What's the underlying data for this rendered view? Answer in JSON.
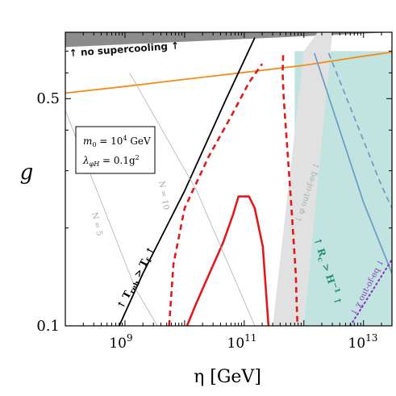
{
  "chart_data": {
    "type": "line",
    "xlabel": "η [GeV]",
    "ylabel": "g",
    "xscale": "log",
    "yscale": "log",
    "xlim": [
      100000000.0,
      30000000000000.0
    ],
    "ylim": [
      0.1,
      0.8
    ],
    "grid": false,
    "x_tick_labels": [
      {
        "value": 1000000000.0,
        "base": "10",
        "exp": "9"
      },
      {
        "value": 100000000000.0,
        "base": "10",
        "exp": "11"
      },
      {
        "value": 10000000000000.0,
        "base": "10",
        "exp": "13"
      }
    ],
    "y_tick_labels": [
      {
        "value": 0.5,
        "label": "0.5"
      },
      {
        "value": 0.1,
        "label": "0.1"
      }
    ],
    "param_box": {
      "line1": "m0 = 10^4 GeV",
      "line1_parts": [
        "m",
        "0",
        " = 10",
        "4",
        " GeV"
      ],
      "line2_parts": [
        "λ",
        "φH",
        " = 0.1g",
        "2"
      ]
    },
    "annotations": {
      "no_supercooling": "↑ no supercooling ↑",
      "treh_tf": {
        "pre": "↑ T",
        "sub1": "reh",
        "mid": " > T",
        "sub2": "f",
        "post": " ↑"
      },
      "rc_h": {
        "pre": "↑ R",
        "sub": "c",
        "mid": " > H",
        "sup": "−1",
        "post": " ↑"
      },
      "phi_out_of_eq": "↓ φ out-of-eq ↓",
      "chi_out_of_eq": "↓ χ out-of-eq ↓",
      "n10": "N = 10",
      "n5": "N = 5"
    },
    "series": [
      {
        "id": "orange",
        "color": "#f28c1c",
        "x": [
          100000000.0,
          1000000000.0,
          10000000000.0,
          100000000000.0,
          1000000000000.0,
          10000000000000.0,
          30000000000000.0
        ],
        "y": [
          0.52,
          0.545,
          0.573,
          0.602,
          0.633,
          0.675,
          0.695
        ]
      },
      {
        "id": "black",
        "color": "#000000",
        "x": [
          800000000.0,
          2000000000.0,
          10000000000.0,
          50000000000.0,
          150000000000.0
        ],
        "y": [
          0.1,
          0.145,
          0.26,
          0.5,
          0.77
        ]
      },
      {
        "id": "red-dashed-left",
        "color": "#e01a1a",
        "dash": true,
        "x": [
          5500000000.0,
          6500000000.0,
          10000000000.0,
          25000000000.0,
          60000000000.0,
          120000000000.0,
          200000000000.0
        ],
        "y": [
          0.1,
          0.155,
          0.23,
          0.33,
          0.44,
          0.56,
          0.64
        ]
      },
      {
        "id": "red-dashed-right",
        "color": "#e01a1a",
        "dash": true,
        "x": [
          450000000000.0,
          440000000000.0,
          460000000000.0,
          540000000000.0,
          620000000000.0,
          730000000000.0,
          780000000000.0
        ],
        "y": [
          0.68,
          0.6,
          0.5,
          0.33,
          0.23,
          0.145,
          0.1
        ]
      },
      {
        "id": "red-solid",
        "color": "#e01a1a",
        "x": [
          11000000000.0,
          15000000000.0,
          24000000000.0,
          44000000000.0,
          65000000000.0,
          80000000000.0,
          110000000000.0,
          120000000000.0,
          150000000000.0,
          205000000000.0,
          230000000000.0,
          255000000000.0
        ],
        "y": [
          0.1,
          0.115,
          0.14,
          0.18,
          0.22,
          0.25,
          0.25,
          0.25,
          0.23,
          0.175,
          0.13,
          0.1
        ]
      },
      {
        "id": "blue-solid",
        "color": "#6a9bc4",
        "x": [
          1500000000000.0,
          10000000000000.0,
          30000000000000.0
        ],
        "y": [
          0.69,
          0.24,
          0.145
        ]
      },
      {
        "id": "blue-dashed",
        "color": "#6a9bc4",
        "dash": true,
        "x": [
          2600000000000.0,
          20000000000000.0,
          30000000000000.0
        ],
        "y": [
          0.69,
          0.27,
          0.23
        ]
      },
      {
        "id": "purple-dotted",
        "color": "#8a3fbe",
        "dotted": true,
        "x": [
          6000000000000.0,
          30000000000000.0
        ],
        "y": [
          0.1,
          0.16
        ]
      },
      {
        "id": "gray-n10",
        "color": "#b0b0b0",
        "x": [
          1200000000.0,
          16000000000.0,
          150000000000.0
        ],
        "y": [
          0.6,
          0.26,
          0.1
        ]
      },
      {
        "id": "gray-n5",
        "color": "#b0b0b0",
        "x": [
          100000000.0,
          1500000000.0,
          3500000000.0
        ],
        "y": [
          0.46,
          0.13,
          0.1
        ]
      }
    ],
    "regions": [
      {
        "id": "no-supercooling",
        "fill": "#8c8c8c",
        "x": [
          100000000.0,
          100000000.0,
          120000000000.0,
          30000000000000.0,
          30000000000000.0
        ],
        "y": [
          0.72,
          0.8,
          0.8,
          0.8,
          0.8
        ]
      },
      {
        "id": "teal",
        "fill": "#c2e4e0",
        "x": [
          700000000000.0,
          30000000000000.0,
          30000000000000.0,
          700000000000.0
        ],
        "y": [
          0.7,
          0.7,
          0.1,
          0.1
        ]
      },
      {
        "id": "gray-light",
        "fill": "#e1e1e1",
        "x": [
          300000000000.0,
          1000000000000.0,
          3000000000000.0,
          1700000000000.0,
          1000000000000.0,
          300000000000.0
        ],
        "y": [
          0.1,
          0.1,
          0.8,
          0.8,
          0.7,
          0.1
        ]
      }
    ]
  }
}
